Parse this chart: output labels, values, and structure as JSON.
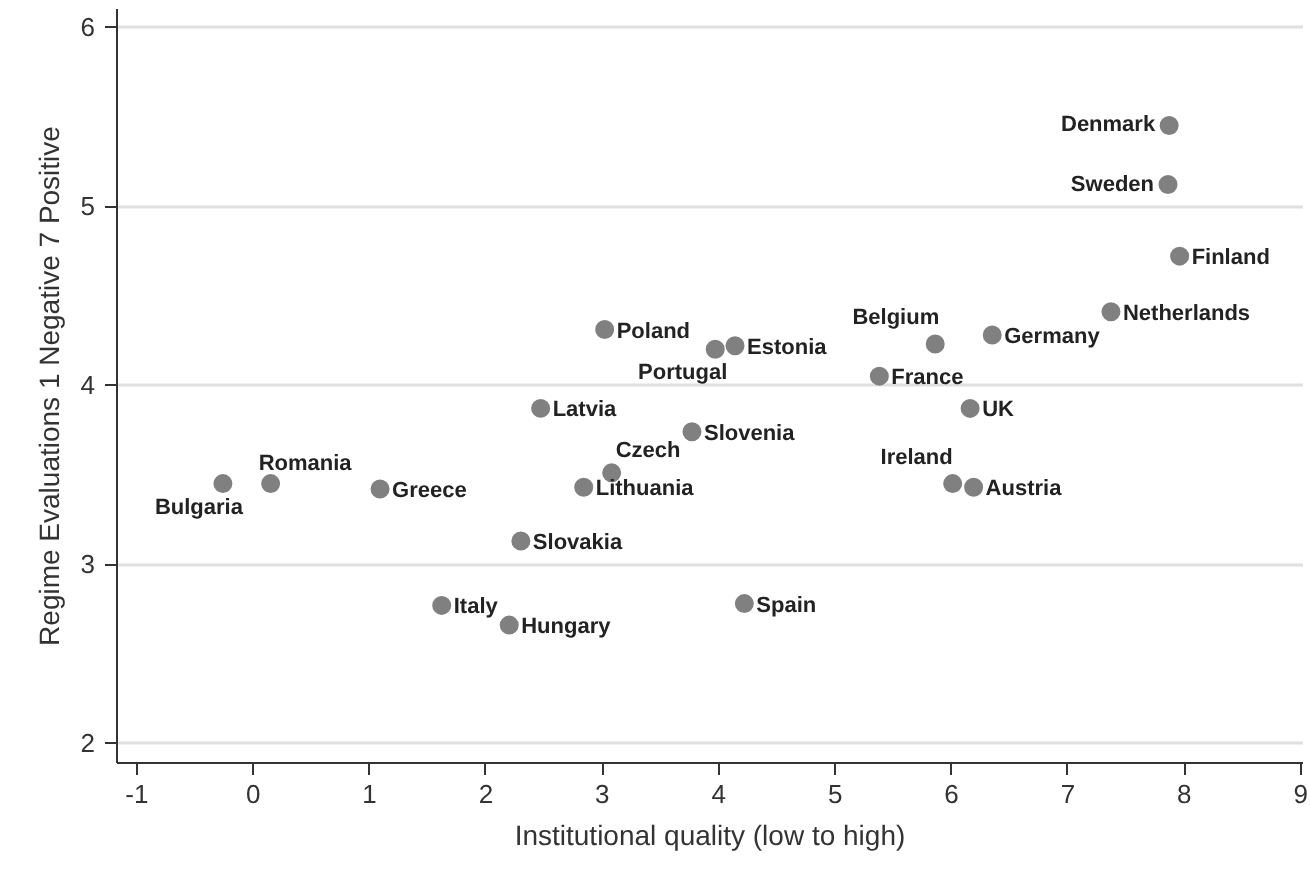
{
  "chart_data": {
    "type": "scatter",
    "xlabel": "Institutional quality (low to high)",
    "ylabel": "Regime Evaluations 1 Negative 7 Positive",
    "xlim": [
      -1.17,
      9.02
    ],
    "ylim": [
      1.89,
      6.1
    ],
    "xticks": [
      -1,
      0,
      1,
      2,
      3,
      4,
      5,
      6,
      7,
      8,
      9
    ],
    "yticks": [
      2,
      3,
      4,
      5,
      6
    ],
    "grid": "y",
    "marker": "circle",
    "series": [
      {
        "color": "#808080",
        "x": [
          7.87,
          7.86,
          7.96,
          7.37,
          6.35,
          5.86,
          5.38,
          6.16,
          6.01,
          6.19,
          4.14,
          3.97,
          3.02,
          2.47,
          3.77,
          3.08,
          2.84,
          0.15,
          -0.26,
          1.09,
          2.3,
          1.62,
          2.2,
          4.22
        ],
        "values": [
          5.45,
          5.12,
          4.72,
          4.41,
          4.28,
          4.23,
          4.05,
          3.87,
          3.45,
          3.43,
          4.22,
          4.2,
          4.31,
          3.87,
          3.74,
          3.51,
          3.43,
          3.45,
          3.45,
          3.42,
          3.13,
          2.77,
          2.66,
          2.78
        ]
      }
    ],
    "annotations": [
      {
        "text": "Denmark",
        "x": 7.87,
        "y": 5.45
      },
      {
        "text": "Sweden",
        "x": 7.86,
        "y": 5.12
      },
      {
        "text": "Finland",
        "x": 7.96,
        "y": 4.72
      },
      {
        "text": "Netherlands",
        "x": 7.37,
        "y": 4.41
      },
      {
        "text": "Germany",
        "x": 6.35,
        "y": 4.28
      },
      {
        "text": "Belgium",
        "x": 5.86,
        "y": 4.23
      },
      {
        "text": "France",
        "x": 5.38,
        "y": 4.05
      },
      {
        "text": "UK",
        "x": 6.16,
        "y": 3.87
      },
      {
        "text": "Ireland",
        "x": 6.01,
        "y": 3.45
      },
      {
        "text": "Austria",
        "x": 6.19,
        "y": 3.43
      },
      {
        "text": "Estonia",
        "x": 4.14,
        "y": 4.22
      },
      {
        "text": "Portugal",
        "x": 3.97,
        "y": 4.2
      },
      {
        "text": "Poland",
        "x": 3.02,
        "y": 4.31
      },
      {
        "text": "Latvia",
        "x": 2.47,
        "y": 3.87
      },
      {
        "text": "Slovenia",
        "x": 3.77,
        "y": 3.74
      },
      {
        "text": "Czech",
        "x": 3.08,
        "y": 3.51
      },
      {
        "text": "Lithuania",
        "x": 2.84,
        "y": 3.43
      },
      {
        "text": "Romania",
        "x": 0.15,
        "y": 3.45
      },
      {
        "text": "Bulgaria",
        "x": -0.26,
        "y": 3.45
      },
      {
        "text": "Greece",
        "x": 1.09,
        "y": 3.42
      },
      {
        "text": "Slovakia",
        "x": 2.3,
        "y": 3.13
      },
      {
        "text": "Italy",
        "x": 1.62,
        "y": 2.77
      },
      {
        "text": "Hungary",
        "x": 2.2,
        "y": 2.66
      },
      {
        "text": "Spain",
        "x": 4.22,
        "y": 2.78
      }
    ]
  }
}
